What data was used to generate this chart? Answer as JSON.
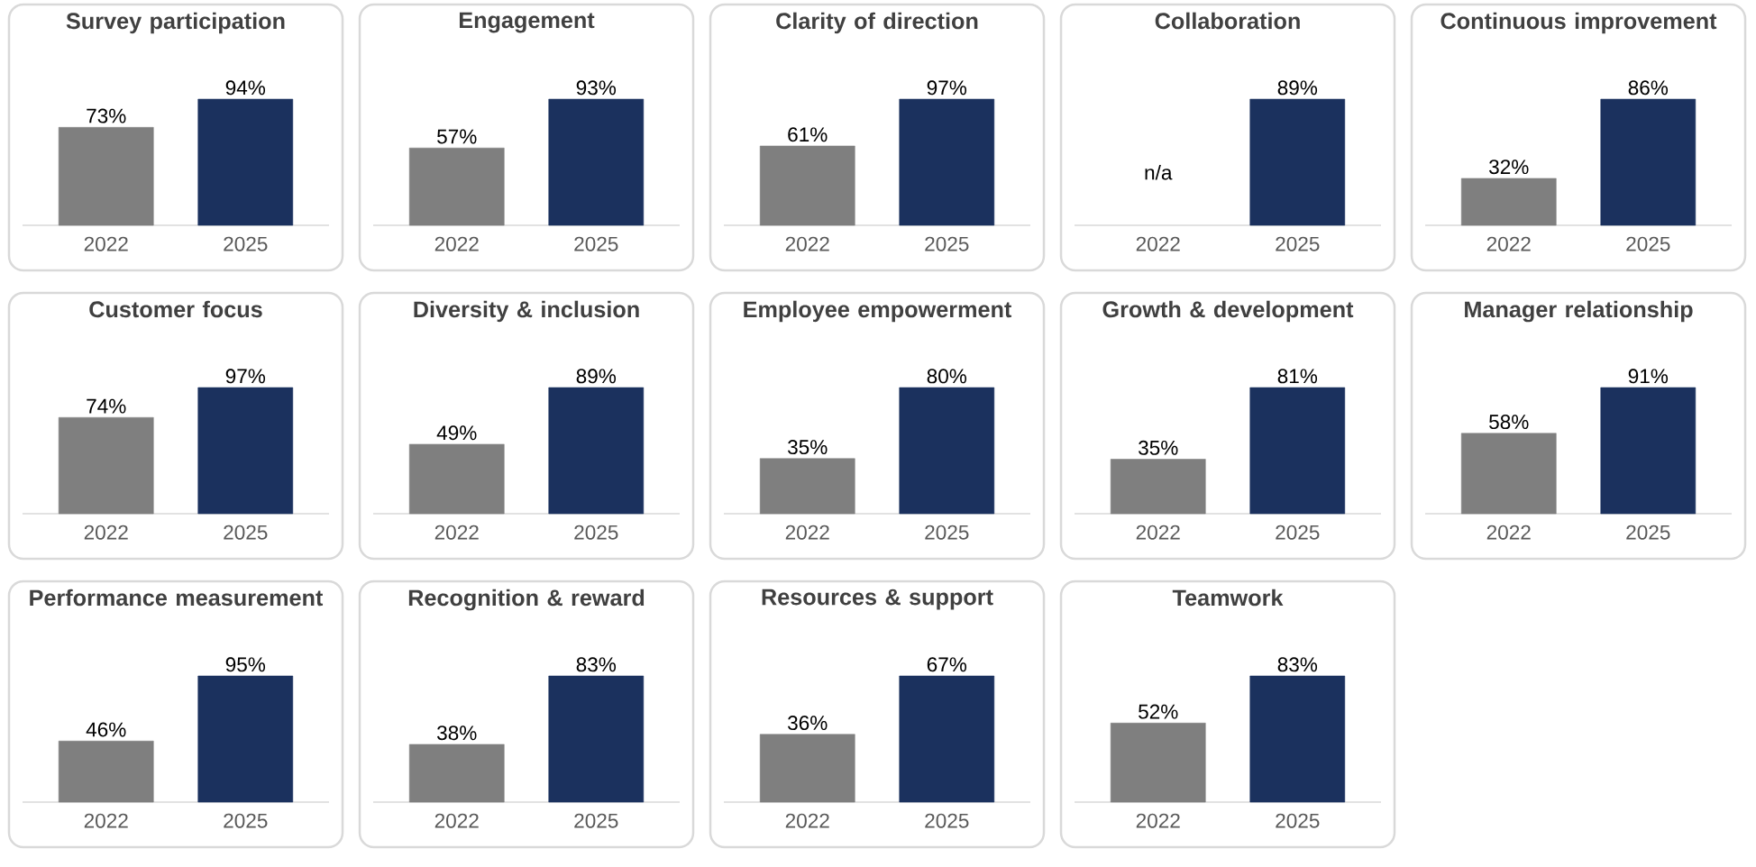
{
  "chart_data": [
    {
      "type": "bar",
      "title": "Survey participation",
      "categories": [
        "2022",
        "2025"
      ],
      "values": [
        73,
        94
      ],
      "value_labels": [
        "73%",
        "94%"
      ],
      "colors": [
        "#7f7f7f",
        "#1b315e"
      ]
    },
    {
      "type": "bar",
      "title": "Engagement",
      "categories": [
        "2022",
        "2025"
      ],
      "values": [
        57,
        93
      ],
      "value_labels": [
        "57%",
        "93%"
      ],
      "colors": [
        "#7f7f7f",
        "#1b315e"
      ]
    },
    {
      "type": "bar",
      "title": "Clarity of direction",
      "categories": [
        "2022",
        "2025"
      ],
      "values": [
        61,
        97
      ],
      "value_labels": [
        "61%",
        "97%"
      ],
      "colors": [
        "#7f7f7f",
        "#1b315e"
      ]
    },
    {
      "type": "bar",
      "title": "Collaboration",
      "categories": [
        "2022",
        "2025"
      ],
      "values": [
        null,
        89
      ],
      "value_labels": [
        "n/a",
        "89%"
      ],
      "colors": [
        "#7f7f7f",
        "#1b315e"
      ]
    },
    {
      "type": "bar",
      "title": "Continuous improvement",
      "categories": [
        "2022",
        "2025"
      ],
      "values": [
        32,
        86
      ],
      "value_labels": [
        "32%",
        "86%"
      ],
      "colors": [
        "#7f7f7f",
        "#1b315e"
      ]
    },
    {
      "type": "bar",
      "title": "Customer focus",
      "categories": [
        "2022",
        "2025"
      ],
      "values": [
        74,
        97
      ],
      "value_labels": [
        "74%",
        "97%"
      ],
      "colors": [
        "#7f7f7f",
        "#1b315e"
      ]
    },
    {
      "type": "bar",
      "title": "Diversity & inclusion",
      "categories": [
        "2022",
        "2025"
      ],
      "values": [
        49,
        89
      ],
      "value_labels": [
        "49%",
        "89%"
      ],
      "colors": [
        "#7f7f7f",
        "#1b315e"
      ]
    },
    {
      "type": "bar",
      "title": "Employee empowerment",
      "categories": [
        "2022",
        "2025"
      ],
      "values": [
        35,
        80
      ],
      "value_labels": [
        "35%",
        "80%"
      ],
      "colors": [
        "#7f7f7f",
        "#1b315e"
      ]
    },
    {
      "type": "bar",
      "title": "Growth & development",
      "categories": [
        "2022",
        "2025"
      ],
      "values": [
        35,
        81
      ],
      "value_labels": [
        "35%",
        "81%"
      ],
      "colors": [
        "#7f7f7f",
        "#1b315e"
      ]
    },
    {
      "type": "bar",
      "title": "Manager relationship",
      "categories": [
        "2022",
        "2025"
      ],
      "values": [
        58,
        91
      ],
      "value_labels": [
        "58%",
        "91%"
      ],
      "colors": [
        "#7f7f7f",
        "#1b315e"
      ]
    },
    {
      "type": "bar",
      "title": "Performance measurement",
      "categories": [
        "2022",
        "2025"
      ],
      "values": [
        46,
        95
      ],
      "value_labels": [
        "46%",
        "95%"
      ],
      "colors": [
        "#7f7f7f",
        "#1b315e"
      ]
    },
    {
      "type": "bar",
      "title": "Recognition & reward",
      "categories": [
        "2022",
        "2025"
      ],
      "values": [
        38,
        83
      ],
      "value_labels": [
        "38%",
        "83%"
      ],
      "colors": [
        "#7f7f7f",
        "#1b315e"
      ]
    },
    {
      "type": "bar",
      "title": "Resources & support",
      "categories": [
        "2022",
        "2025"
      ],
      "values": [
        36,
        67
      ],
      "value_labels": [
        "36%",
        "67%"
      ],
      "colors": [
        "#7f7f7f",
        "#1b315e"
      ]
    },
    {
      "type": "bar",
      "title": "Teamwork",
      "categories": [
        "2022",
        "2025"
      ],
      "values": [
        52,
        83
      ],
      "value_labels": [
        "52%",
        "83%"
      ],
      "colors": [
        "#7f7f7f",
        "#1b315e"
      ]
    }
  ]
}
